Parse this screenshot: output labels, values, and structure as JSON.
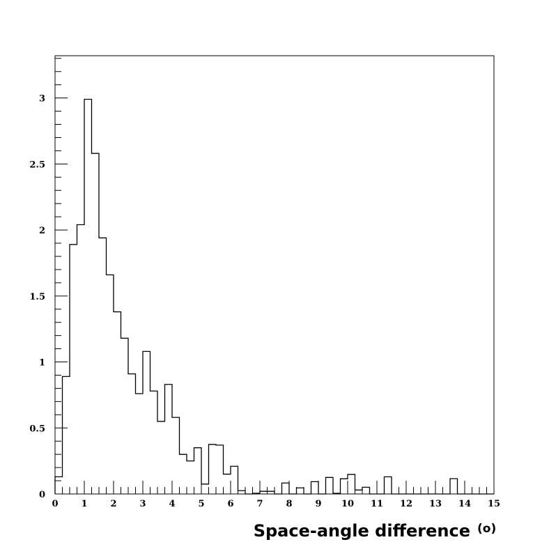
{
  "chart_data": {
    "type": "bar",
    "subtype": "step-histogram",
    "title": "",
    "xlabel": "Space-angle difference",
    "xlabel_unit": "(o)",
    "ylabel": "",
    "xlim": [
      0,
      15
    ],
    "ylim": [
      0,
      3.32
    ],
    "bin_width": 0.25,
    "x_ticks": [
      "0",
      "1",
      "2",
      "3",
      "4",
      "5",
      "6",
      "7",
      "8",
      "9",
      "10",
      "11",
      "12",
      "13",
      "14",
      "15"
    ],
    "y_ticks": [
      "0",
      "0.5",
      "1",
      "1.5",
      "2",
      "2.5",
      "3"
    ],
    "grid": false,
    "line_color": "#000000",
    "values": [
      0.13,
      0.89,
      1.89,
      2.04,
      2.99,
      2.58,
      1.94,
      1.66,
      1.38,
      1.18,
      0.91,
      0.76,
      1.08,
      0.78,
      0.55,
      0.83,
      0.58,
      0.3,
      0.25,
      0.35,
      0.075,
      0.375,
      0.37,
      0.15,
      0.21,
      0.025,
      0,
      0.005,
      0.02,
      0.02,
      0,
      0.083,
      0,
      0.046,
      0,
      0.093,
      0,
      0.125,
      0.005,
      0.115,
      0.148,
      0.03,
      0.051,
      0,
      0,
      0.13,
      0,
      0,
      0,
      0,
      0,
      0,
      0,
      0,
      0.116,
      0,
      0,
      0,
      0,
      0
    ]
  }
}
